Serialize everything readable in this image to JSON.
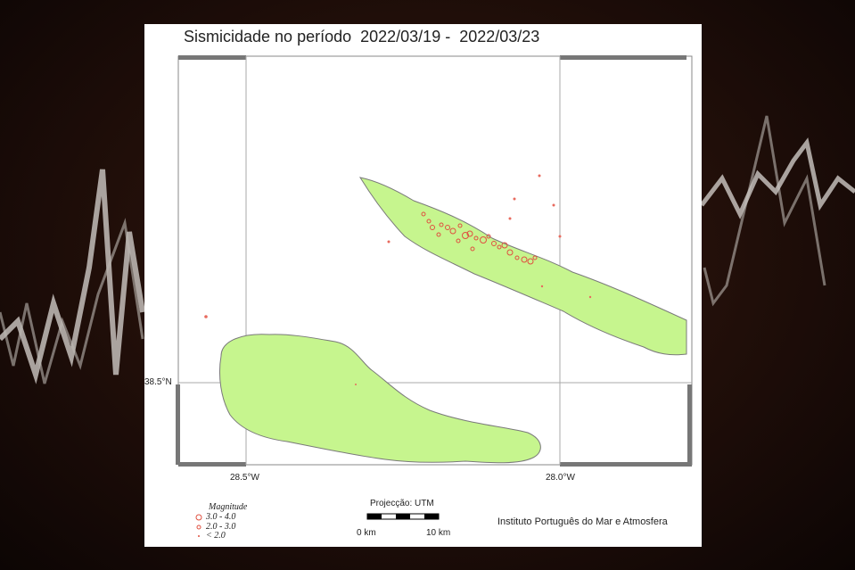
{
  "map": {
    "title": "Sismicidade no período  2022/03/19 -  2022/03/23",
    "lat_label": "38.5°N",
    "lon_labels": [
      "28.5°W",
      "28.0°W"
    ],
    "legend": {
      "title": "Magnitude",
      "items": [
        {
          "label": "3.0 - 4.0",
          "symbol": "large-circle-icon"
        },
        {
          "label": "2.0 - 3.0",
          "symbol": "medium-circle-icon"
        },
        {
          "label": "< 2.0",
          "symbol": "small-dot-icon"
        }
      ]
    },
    "projection": "Projecção: UTM",
    "scale_start": "0 km",
    "scale_end": "10 km",
    "institute": "Instituto Português do Mar e Atmosfera",
    "colors": {
      "land": "#c6f58e",
      "coast": "#7a7a7a",
      "event": "#e05040",
      "frame": "#777777"
    }
  }
}
